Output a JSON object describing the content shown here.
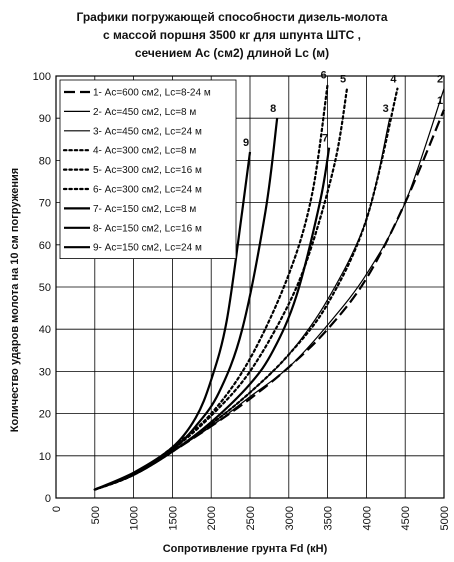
{
  "chart_data": {
    "type": "line",
    "title_lines": [
      "Графики погружающей способности дизель-молота",
      "с массой поршня 3500 кг для шпунта ШТС ,",
      "сечением Ас (см2) длиной Lc (м)"
    ],
    "xlabel": "Сопротивление грунта Fd (кН)",
    "ylabel": "Количество ударов молота на 10 см погружения",
    "xlim": [
      0,
      5000
    ],
    "ylim": [
      0,
      100
    ],
    "x_ticks": [
      "0",
      "500",
      "1000",
      "1500",
      "2000",
      "2500",
      "3000",
      "3500",
      "4000",
      "4500",
      "5000"
    ],
    "y_ticks": [
      "0",
      "10",
      "20",
      "30",
      "40",
      "50",
      "60",
      "70",
      "80",
      "90",
      "100"
    ],
    "grid": true,
    "legend_position": "top-left",
    "series": [
      {
        "name": "1- Ас=600 см2, Lc=8-24 м",
        "style": "long-dash",
        "width": 2.2,
        "label": "1",
        "x": [
          500,
          1000,
          1500,
          2000,
          2500,
          3000,
          3500,
          4000,
          4500,
          5000
        ],
        "y": [
          2,
          5.5,
          11,
          17,
          23.5,
          31,
          40,
          52,
          70,
          92
        ]
      },
      {
        "name": "2- Ас=450 см2, Lc=8 м",
        "style": "solid",
        "width": 1.2,
        "label": "2",
        "x": [
          500,
          1000,
          1500,
          2000,
          2500,
          3000,
          3500,
          4000,
          4500,
          5000
        ],
        "y": [
          2,
          5.5,
          11,
          17,
          24,
          31,
          41,
          53,
          70,
          97
        ]
      },
      {
        "name": "3- Ас=450 см2, Lc=24 м",
        "style": "solid",
        "width": 1.2,
        "label": "3",
        "x": [
          500,
          1000,
          1500,
          2000,
          2500,
          3000,
          3500,
          4000,
          4300
        ],
        "y": [
          2,
          5.5,
          11,
          17.5,
          25,
          34,
          47,
          66,
          90
        ]
      },
      {
        "name": "4- Ас=300 см2, Lc=8 м",
        "style": "dotted",
        "width": 2.2,
        "label": "4",
        "x": [
          500,
          1000,
          1500,
          2000,
          2500,
          3000,
          3500,
          4000,
          4400
        ],
        "y": [
          2,
          5.5,
          11,
          17.5,
          25,
          34,
          46,
          66,
          97
        ]
      },
      {
        "name": "5- Ас=300 см2, Lc=16 м",
        "style": "dotted",
        "width": 2.2,
        "label": "5",
        "x": [
          500,
          1000,
          1500,
          2000,
          2500,
          3000,
          3300,
          3600,
          3750
        ],
        "y": [
          2,
          5.5,
          11.5,
          19.5,
          30,
          46,
          60,
          80,
          97
        ]
      },
      {
        "name": "6- Ас=300 см2, Lc=24 м",
        "style": "dotted",
        "width": 2.2,
        "label": "6",
        "x": [
          500,
          1000,
          1500,
          2000,
          2500,
          3000,
          3300,
          3500
        ],
        "y": [
          2,
          5.5,
          12,
          20,
          33,
          53,
          72,
          98
        ]
      },
      {
        "name": "7- Ас=150 см2, Lc=8 м",
        "style": "solid",
        "width": 2.2,
        "label": "7",
        "x": [
          500,
          1000,
          1500,
          2000,
          2500,
          2800,
          3100,
          3400,
          3520
        ],
        "y": [
          2,
          5.5,
          11,
          18,
          27,
          35,
          48,
          70,
          83
        ]
      },
      {
        "name": "8- Ас=150 см2, Lc=16 м",
        "style": "solid",
        "width": 2.2,
        "label": "8",
        "x": [
          500,
          1000,
          1500,
          1800,
          2100,
          2400,
          2700,
          2850
        ],
        "y": [
          2,
          5.5,
          11.5,
          17,
          25,
          40,
          68,
          90
        ]
      },
      {
        "name": "9- Ас=150 см2, Lc=24 м",
        "style": "solid",
        "width": 2.2,
        "label": "9",
        "x": [
          500,
          1000,
          1500,
          1800,
          2000,
          2200,
          2400,
          2500
        ],
        "y": [
          2,
          6,
          12,
          19,
          28,
          42,
          68,
          82
        ]
      }
    ]
  }
}
